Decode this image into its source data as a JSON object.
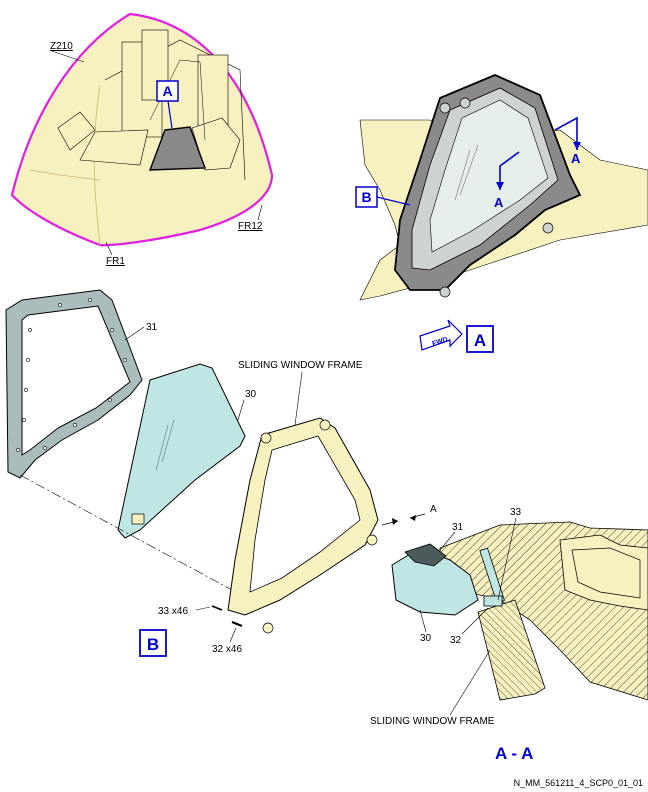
{
  "labels": {
    "z210": "Z210",
    "fr1": "FR1",
    "fr12": "FR12",
    "view_a_callout": "A",
    "view_a_box": "A",
    "view_b_box": "B",
    "view_b_callout": "B",
    "section_arrow_1": "A",
    "section_arrow_2": "A",
    "section_arrow_3": "A",
    "fwd": "FWD",
    "item_31_top": "31",
    "item_30_top": "30",
    "sliding_frame_top": "SLIDING WINDOW FRAME",
    "item_33": "33 x46",
    "item_32": "32 x46",
    "item_31_section": "31",
    "item_33_section": "33",
    "item_30_section": "30",
    "item_32_section": "32",
    "sliding_frame_bottom": "SLIDING WINDOW FRAME",
    "section_title": "A - A",
    "drawing_ref": "N_MM_561211_4_SCP0_01_01"
  },
  "colors": {
    "cream": "#f7f1c0",
    "glass": "#bfe6e4",
    "magenta": "#e020e0",
    "blue": "#0000cc",
    "dark_grey": "#8a8a8a",
    "seal_grey": "#a9bdbd"
  }
}
